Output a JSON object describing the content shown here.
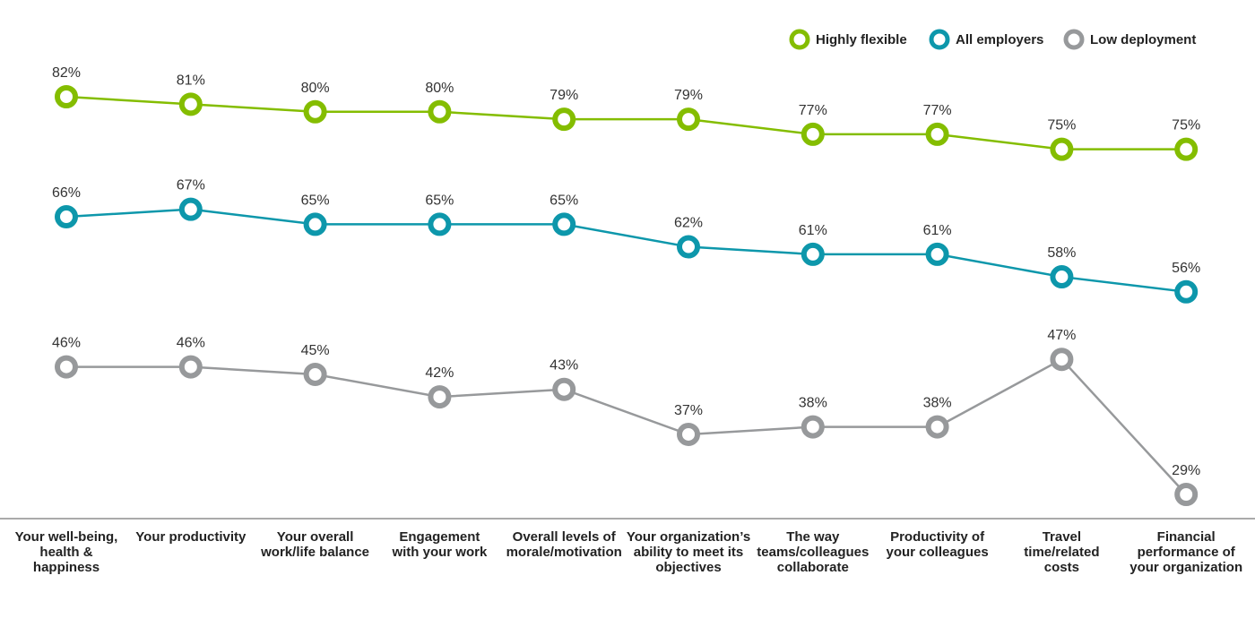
{
  "chart_data": {
    "type": "line",
    "categories": [
      [
        "Your well-being,",
        "health &",
        "happiness"
      ],
      [
        "Your productivity"
      ],
      [
        "Your overall",
        "work/life balance"
      ],
      [
        "Engagement",
        "with your work"
      ],
      [
        "Overall levels of",
        "morale/motivation"
      ],
      [
        "Your organization’s",
        "ability to meet its",
        "objectives"
      ],
      [
        "The way",
        "teams/colleagues",
        "collaborate"
      ],
      [
        "Productivity of",
        "your colleagues"
      ],
      [
        "Travel",
        "time/related",
        "costs"
      ],
      [
        "Financial",
        "performance of",
        "your organization"
      ]
    ],
    "series": [
      {
        "name": "Highly flexible",
        "color": "#84bd00",
        "values": [
          82,
          81,
          80,
          80,
          79,
          79,
          77,
          77,
          75,
          75
        ],
        "labels": [
          "82%",
          "81%",
          "80%",
          "80%",
          "79%",
          "79%",
          "77%",
          "77%",
          "75%",
          "75%"
        ]
      },
      {
        "name": "All employers",
        "color": "#0d97ab",
        "values": [
          66,
          67,
          65,
          65,
          65,
          62,
          61,
          61,
          58,
          56
        ],
        "labels": [
          "66%",
          "67%",
          "65%",
          "65%",
          "65%",
          "62%",
          "61%",
          "61%",
          "58%",
          "56%"
        ]
      },
      {
        "name": "Low deployment",
        "color": "#97999b",
        "values": [
          46,
          46,
          45,
          42,
          43,
          37,
          38,
          38,
          47,
          29
        ],
        "labels": [
          "46%",
          "46%",
          "45%",
          "42%",
          "43%",
          "37%",
          "38%",
          "38%",
          "47%",
          "29%"
        ]
      }
    ],
    "legend_position": "top-right",
    "grid": false,
    "y_axis_visible": false
  }
}
